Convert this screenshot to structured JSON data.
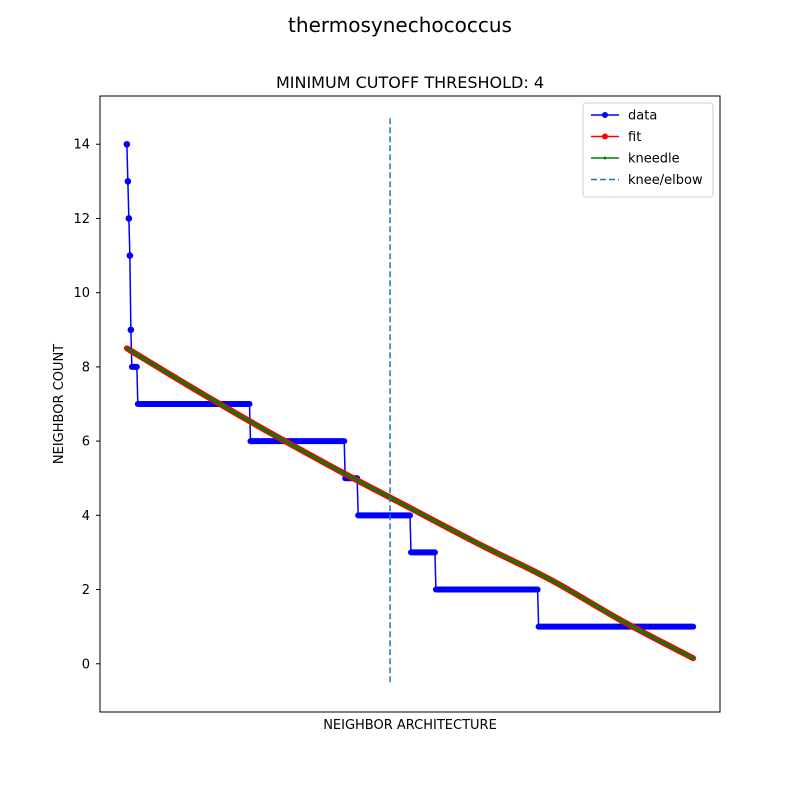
{
  "figure": {
    "suptitle": "thermosynechococcus"
  },
  "chart_data": {
    "type": "line",
    "title": "MINIMUM CUTOFF THRESHOLD: 4",
    "xlabel": "NEIGHBOR ARCHITECTURE",
    "ylabel": "NEIGHBOR COUNT",
    "xlim": [
      -26.95,
      594.95
    ],
    "ylim": [
      -1.3,
      15.3
    ],
    "yticks": [
      0,
      2,
      4,
      6,
      8,
      10,
      12,
      14
    ],
    "x_ticks_shown": false,
    "grid": false,
    "legend": {
      "placement": "top-right",
      "entries": [
        {
          "label": "data",
          "color": "#0000ff",
          "style": "solid",
          "marker": "dot"
        },
        {
          "label": "fit",
          "color": "#ff0000",
          "style": "solid",
          "marker": "dot"
        },
        {
          "label": "kneedle",
          "color": "#008000",
          "style": "solid",
          "marker": "small-dot"
        },
        {
          "label": "knee/elbow",
          "color": "#1f77b4",
          "style": "dashed",
          "marker": "none"
        }
      ]
    },
    "series": [
      {
        "name": "data",
        "color": "#0000ff",
        "steps": [
          {
            "y": 14,
            "x_start": 0,
            "x_end": 0
          },
          {
            "y": 13,
            "x_start": 1,
            "x_end": 1
          },
          {
            "y": 12,
            "x_start": 2,
            "x_end": 2
          },
          {
            "y": 11,
            "x_start": 3,
            "x_end": 3
          },
          {
            "y": 9,
            "x_start": 4,
            "x_end": 4
          },
          {
            "y": 8,
            "x_start": 5,
            "x_end": 10
          },
          {
            "y": 7,
            "x_start": 11,
            "x_end": 123
          },
          {
            "y": 6,
            "x_start": 124,
            "x_end": 218
          },
          {
            "y": 5,
            "x_start": 219,
            "x_end": 231
          },
          {
            "y": 4,
            "x_start": 232,
            "x_end": 284
          },
          {
            "y": 3,
            "x_start": 285,
            "x_end": 309
          },
          {
            "y": 2,
            "x_start": 310,
            "x_end": 412
          },
          {
            "y": 1,
            "x_start": 413,
            "x_end": 568
          }
        ]
      },
      {
        "name": "fit",
        "color": "#ff0000",
        "x": [
          0,
          71,
          142,
          213,
          284,
          355,
          426,
          497,
          568
        ],
        "y": [
          8.5,
          7.35,
          6.25,
          5.2,
          4.2,
          3.2,
          2.25,
          1.15,
          0.15
        ]
      },
      {
        "name": "kneedle",
        "color": "#008000",
        "x": [
          0,
          71,
          142,
          213,
          284,
          355,
          426,
          497,
          568
        ],
        "y": [
          8.5,
          7.35,
          6.25,
          5.2,
          4.2,
          3.2,
          2.25,
          1.15,
          0.15
        ]
      },
      {
        "name": "knee/elbow",
        "color": "#1f77b4",
        "type": "vline",
        "x": 264,
        "y_range": [
          -0.55,
          14.7
        ]
      }
    ]
  }
}
